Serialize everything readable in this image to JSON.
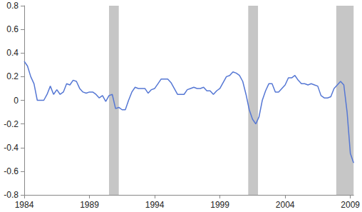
{
  "chart_data": {
    "type": "line",
    "x": [
      1984,
      1984.25,
      1984.5,
      1984.75,
      1985,
      1985.25,
      1985.5,
      1985.75,
      1986,
      1986.25,
      1986.5,
      1986.75,
      1987,
      1987.25,
      1987.5,
      1987.75,
      1988,
      1988.25,
      1988.5,
      1988.75,
      1989,
      1989.25,
      1989.5,
      1989.75,
      1990,
      1990.25,
      1990.5,
      1990.75,
      1991,
      1991.25,
      1991.5,
      1991.75,
      1992,
      1992.25,
      1992.5,
      1992.75,
      1993,
      1993.25,
      1993.5,
      1993.75,
      1994,
      1994.25,
      1994.5,
      1994.75,
      1995,
      1995.25,
      1995.5,
      1995.75,
      1996,
      1996.25,
      1996.5,
      1996.75,
      1997,
      1997.25,
      1997.5,
      1997.75,
      1998,
      1998.25,
      1998.5,
      1998.75,
      1999,
      1999.25,
      1999.5,
      1999.75,
      2000,
      2000.25,
      2000.5,
      2000.75,
      2001,
      2001.25,
      2001.5,
      2001.75,
      2002,
      2002.25,
      2002.5,
      2002.75,
      2003,
      2003.25,
      2003.5,
      2003.75,
      2004,
      2004.25,
      2004.5,
      2004.75,
      2005,
      2005.25,
      2005.5,
      2005.75,
      2006,
      2006.25,
      2006.5,
      2006.75,
      2007,
      2007.25,
      2007.5,
      2007.75,
      2008,
      2008.25,
      2008.5,
      2008.75,
      2009,
      2009.25
    ],
    "values": [
      0.33,
      0.29,
      0.2,
      0.14,
      0.0,
      0.0,
      0.0,
      0.05,
      0.12,
      0.05,
      0.09,
      0.05,
      0.07,
      0.14,
      0.13,
      0.17,
      0.16,
      0.1,
      0.07,
      0.06,
      0.07,
      0.07,
      0.05,
      0.02,
      0.04,
      -0.01,
      0.04,
      0.05,
      -0.07,
      -0.06,
      -0.08,
      -0.08,
      0.0,
      0.07,
      0.11,
      0.1,
      0.1,
      0.1,
      0.06,
      0.09,
      0.1,
      0.14,
      0.18,
      0.18,
      0.18,
      0.15,
      0.1,
      0.05,
      0.05,
      0.05,
      0.09,
      0.1,
      0.11,
      0.1,
      0.1,
      0.11,
      0.08,
      0.08,
      0.05,
      0.08,
      0.1,
      0.15,
      0.2,
      0.21,
      0.24,
      0.23,
      0.21,
      0.16,
      0.05,
      -0.08,
      -0.16,
      -0.2,
      -0.14,
      0.0,
      0.08,
      0.14,
      0.14,
      0.07,
      0.07,
      0.1,
      0.13,
      0.19,
      0.19,
      0.21,
      0.17,
      0.14,
      0.14,
      0.13,
      0.14,
      0.13,
      0.12,
      0.04,
      0.02,
      0.02,
      0.03,
      0.1,
      0.13,
      0.16,
      0.13,
      -0.1,
      -0.45,
      -0.53
    ],
    "color": "#5577d4",
    "recessions": [
      [
        1990.5,
        1991.25
      ],
      [
        2001.17,
        2001.92
      ],
      [
        2007.92,
        2009.25
      ]
    ],
    "xlim": [
      1984,
      2009.25
    ],
    "xticks": [
      1984,
      1989,
      1994,
      1999,
      2004,
      2009
    ],
    "ylim": [
      -0.8,
      0.8
    ],
    "yticks": [
      -0.8,
      -0.6,
      -0.4,
      -0.2,
      0,
      0.2,
      0.4,
      0.6,
      0.8
    ],
    "grid": false
  }
}
